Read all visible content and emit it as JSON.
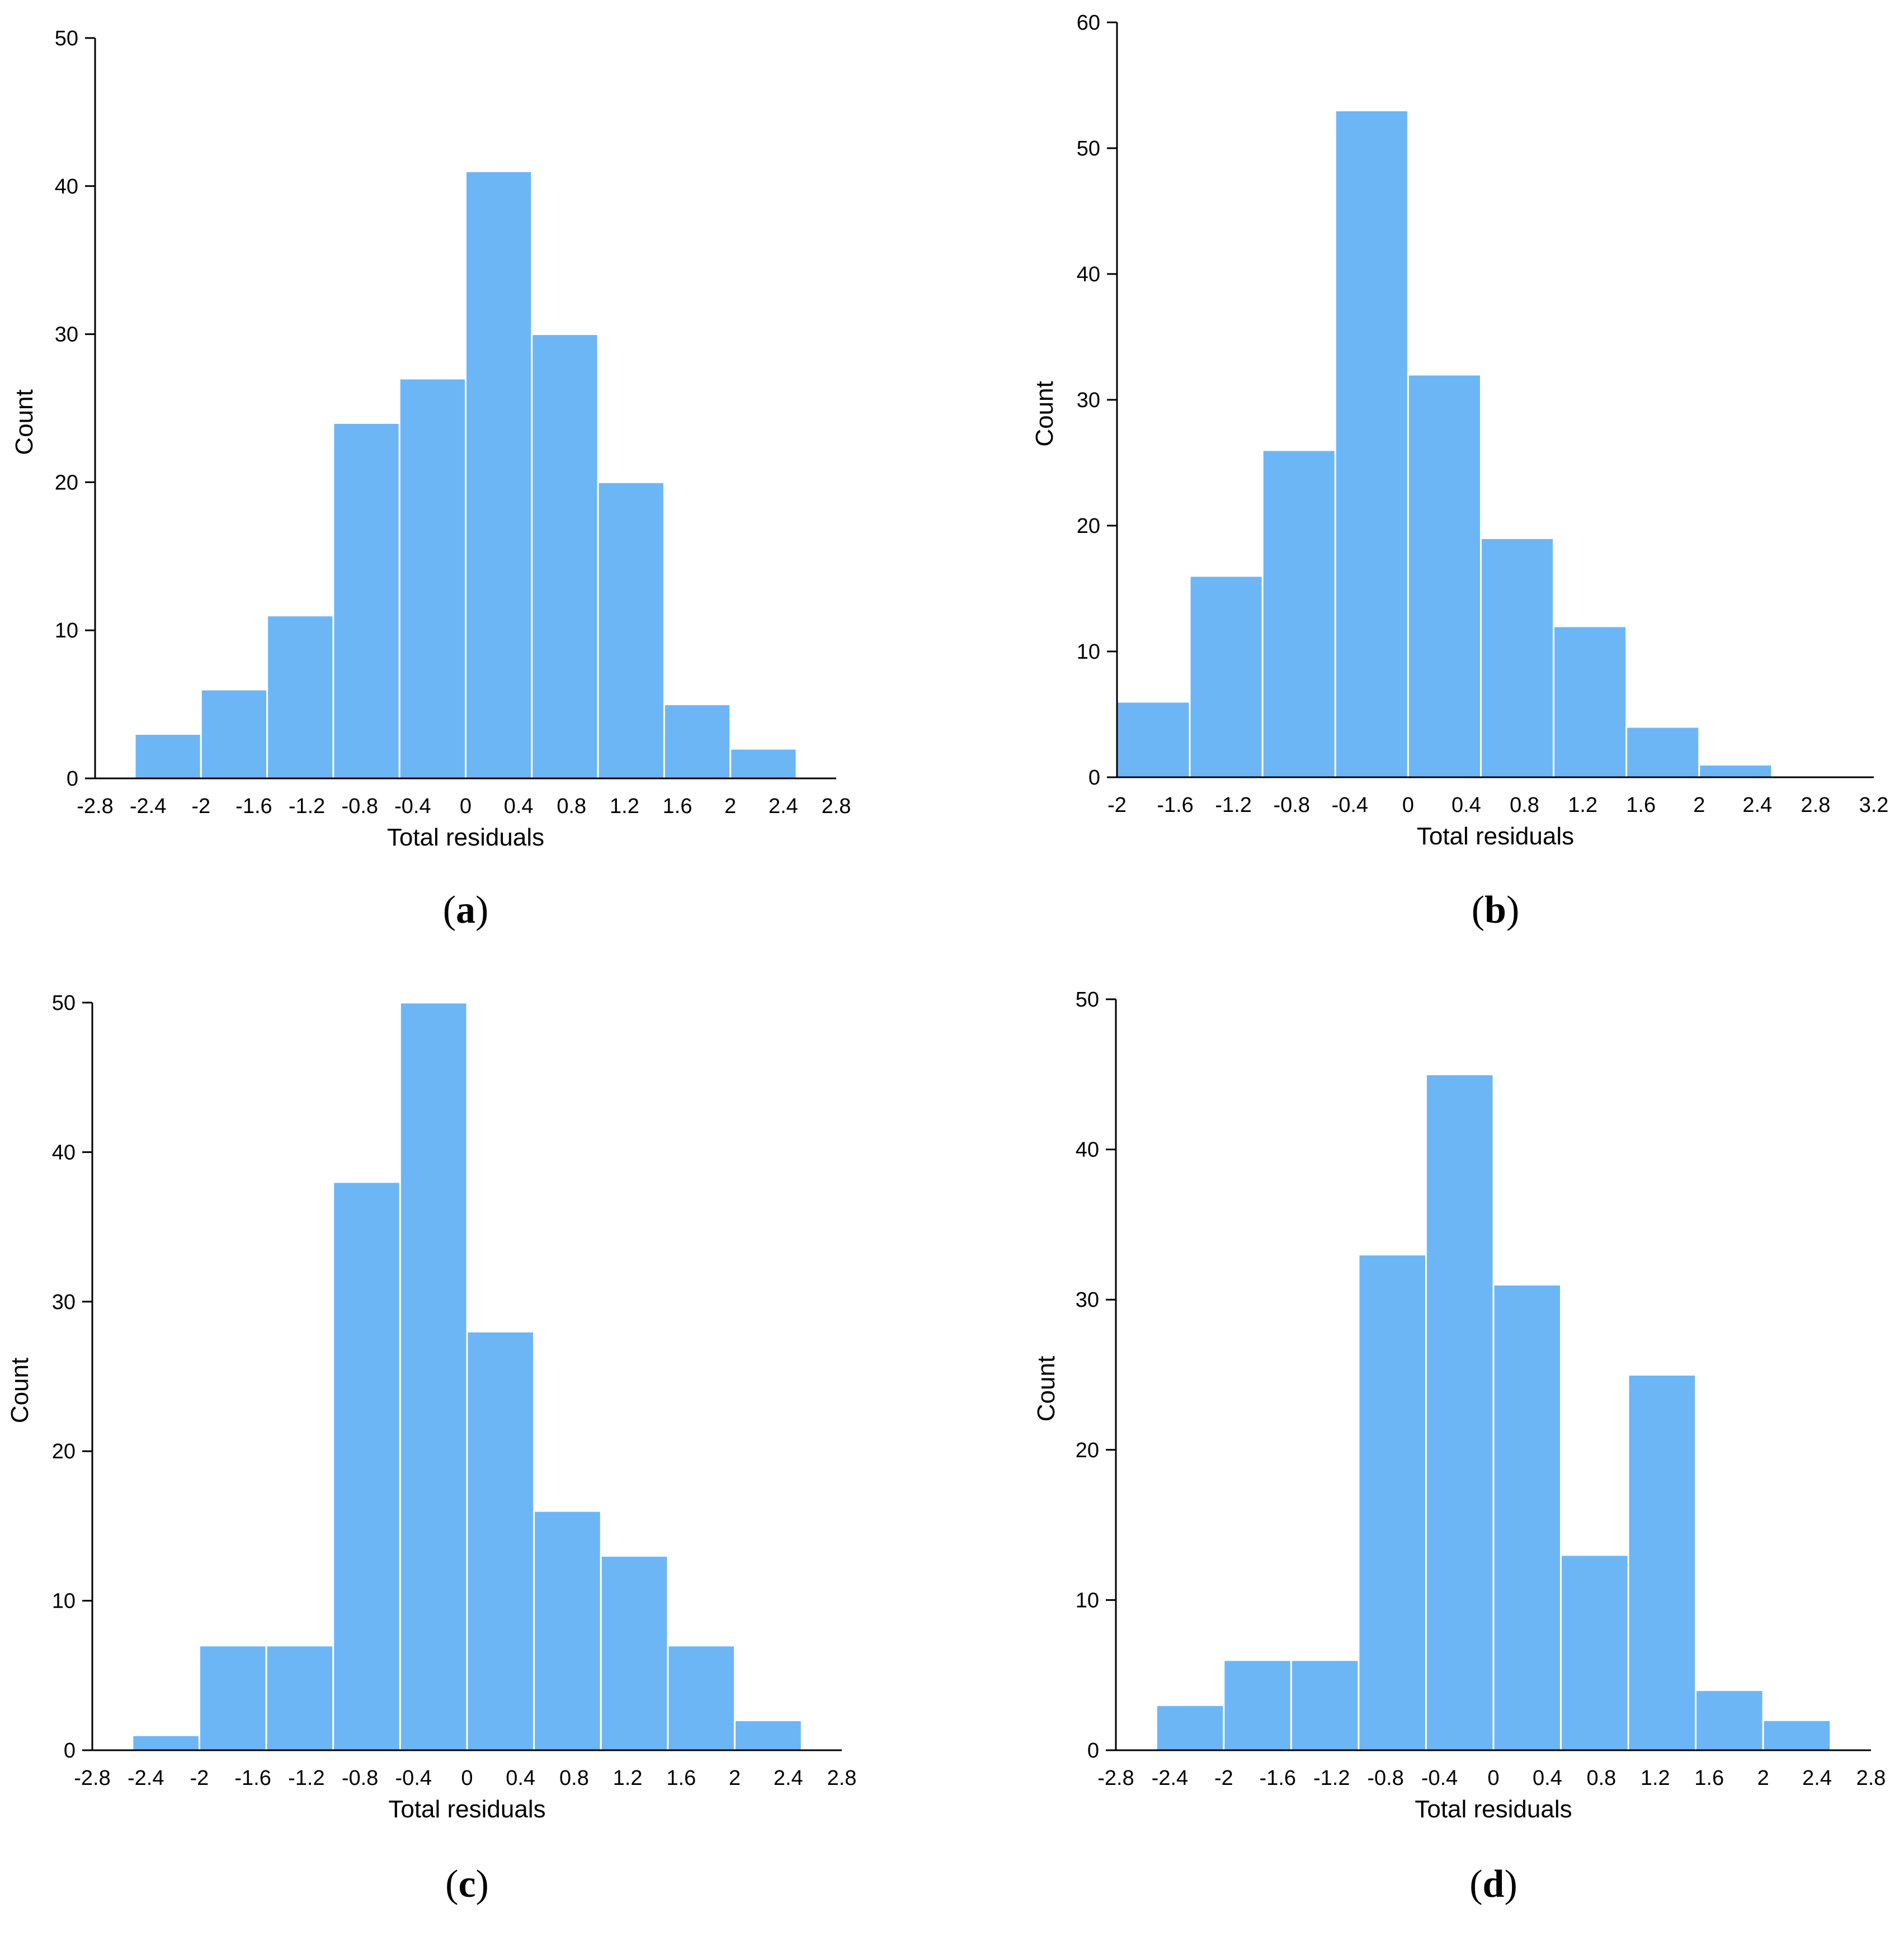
{
  "style": {
    "bar_color": "#6db6f6",
    "axis_color": "#000000"
  },
  "chart_data": [
    {
      "panel": "(a)",
      "panel_letter": "a",
      "type": "bar",
      "xlabel": "Total residuals",
      "ylabel": "Count",
      "xlim": [
        -2.8,
        2.8
      ],
      "ylim": [
        0,
        50
      ],
      "xticks": [
        "-2.8",
        "-2.4",
        "-2",
        "-1.6",
        "-1.2",
        "-0.8",
        "-0.4",
        "0",
        "0.4",
        "0.8",
        "1.2",
        "1.6",
        "2",
        "2.4",
        "2.8"
      ],
      "yticks": [
        "0",
        "10",
        "20",
        "30",
        "40",
        "50"
      ],
      "bin_edges": [
        -2.5,
        -2.0,
        -1.5,
        -1.0,
        -0.5,
        0.0,
        0.5,
        1.0,
        1.5,
        2.0,
        2.5
      ],
      "values": [
        3,
        6,
        11,
        24,
        27,
        41,
        30,
        20,
        5,
        2
      ]
    },
    {
      "panel": "(b)",
      "panel_letter": "b",
      "type": "bar",
      "xlabel": "Total residuals",
      "ylabel": "Count",
      "xlim": [
        -2.0,
        3.2
      ],
      "ylim": [
        0,
        60
      ],
      "xticks": [
        "-2",
        "-1.6",
        "-1.2",
        "-0.8",
        "-0.4",
        "0",
        "0.4",
        "0.8",
        "1.2",
        "1.6",
        "2",
        "2.4",
        "2.8",
        "3.2"
      ],
      "yticks": [
        "0",
        "10",
        "20",
        "30",
        "40",
        "50",
        "60"
      ],
      "bin_edges": [
        -2.0,
        -1.5,
        -1.0,
        -0.5,
        0.0,
        0.5,
        1.0,
        1.5,
        2.0,
        2.5
      ],
      "values": [
        6,
        16,
        26,
        53,
        32,
        19,
        12,
        4,
        1
      ]
    },
    {
      "panel": "(c)",
      "panel_letter": "c",
      "type": "bar",
      "xlabel": "Total residuals",
      "ylabel": "Count",
      "xlim": [
        -2.8,
        2.8
      ],
      "ylim": [
        0,
        50
      ],
      "xticks": [
        "-2.8",
        "-2.4",
        "-2",
        "-1.6",
        "-1.2",
        "-0.8",
        "-0.4",
        "0",
        "0.4",
        "0.8",
        "1.2",
        "1.6",
        "2",
        "2.4",
        "2.8"
      ],
      "yticks": [
        "0",
        "10",
        "20",
        "30",
        "40",
        "50"
      ],
      "bin_edges": [
        -2.5,
        -2.0,
        -1.5,
        -1.0,
        -0.5,
        0.0,
        0.5,
        1.0,
        1.5,
        2.0,
        2.5
      ],
      "values": [
        1,
        7,
        7,
        38,
        50,
        28,
        16,
        13,
        7,
        2
      ]
    },
    {
      "panel": "(d)",
      "panel_letter": "d",
      "type": "bar",
      "xlabel": "Total residuals",
      "ylabel": "Count",
      "xlim": [
        -2.8,
        2.8
      ],
      "ylim": [
        0,
        50
      ],
      "xticks": [
        "-2.8",
        "-2.4",
        "-2",
        "-1.6",
        "-1.2",
        "-0.8",
        "-0.4",
        "0",
        "0.4",
        "0.8",
        "1.2",
        "1.6",
        "2",
        "2.4",
        "2.8"
      ],
      "yticks": [
        "0",
        "10",
        "20",
        "30",
        "40",
        "50"
      ],
      "bin_edges": [
        -2.5,
        -2.0,
        -1.5,
        -1.0,
        -0.5,
        0.0,
        0.5,
        1.0,
        1.5,
        2.0,
        2.5
      ],
      "values": [
        3,
        6,
        6,
        33,
        45,
        31,
        13,
        25,
        4,
        2
      ]
    }
  ]
}
